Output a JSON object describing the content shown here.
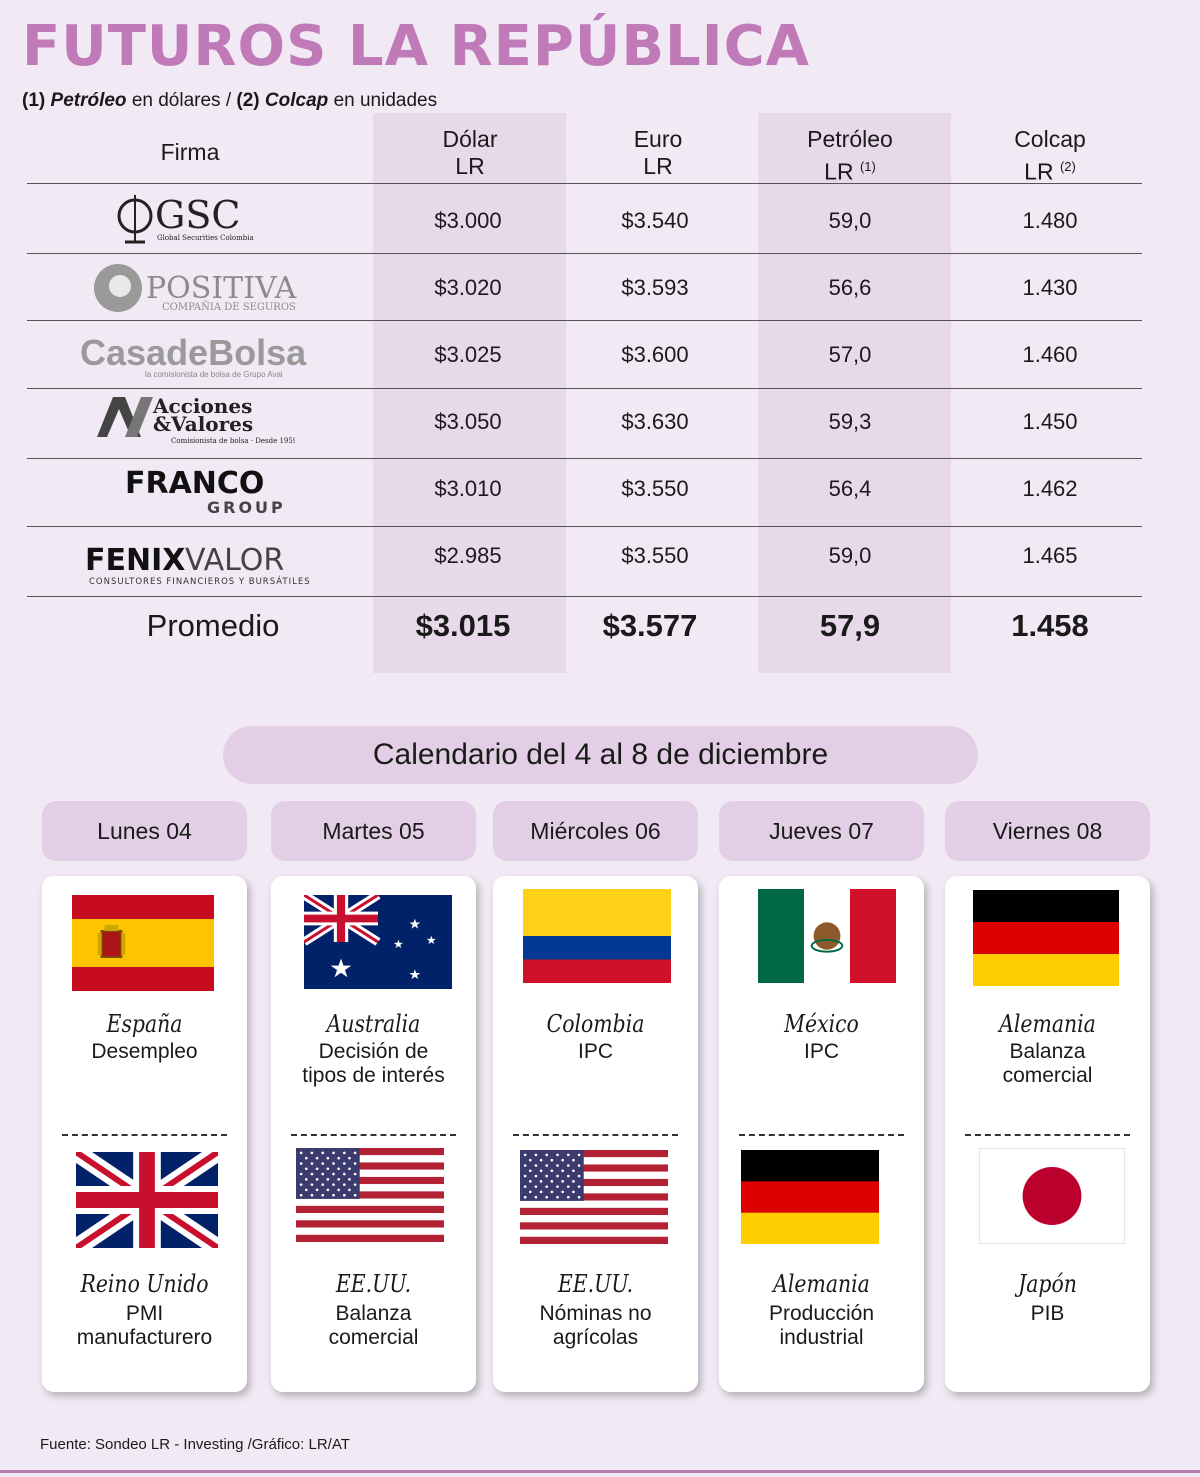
{
  "title": "FUTUROS LA REPÚBLICA",
  "subtitle": {
    "n1": "(1)",
    "t1": "Petróleo",
    "t2": "en dólares /",
    "n2": "(2)",
    "t3": "Colcap",
    "t4": "en unidades"
  },
  "table": {
    "headers": {
      "firma": "Firma",
      "dolar": [
        "Dólar",
        "LR"
      ],
      "euro": [
        "Euro",
        "LR"
      ],
      "petroleo": [
        "Petróleo",
        "LR",
        "(1)"
      ],
      "colcap": [
        "Colcap",
        "LR",
        "(2)"
      ]
    },
    "rows": [
      {
        "firm": "GSC",
        "firm_sub": "Global Securities Colombia",
        "dolar": "$3.000",
        "euro": "$3.540",
        "petroleo": "59,0",
        "colcap": "1.480"
      },
      {
        "firm": "POSITIVA",
        "firm_sub": "COMPAÑIA DE SEGUROS",
        "dolar": "$3.020",
        "euro": "$3.593",
        "petroleo": "56,6",
        "colcap": "1.430"
      },
      {
        "firm": "CasadeBolsa",
        "firm_sub": "la comisionista de bolsa de Grupo Aval",
        "dolar": "$3.025",
        "euro": "$3.600",
        "petroleo": "57,0",
        "colcap": "1.460"
      },
      {
        "firm": "Acciones & Valores",
        "firm_sub": "Comisionista de bolsa · Desde 1959",
        "dolar": "$3.050",
        "euro": "$3.630",
        "petroleo": "59,3",
        "colcap": "1.450"
      },
      {
        "firm": "FRANCO",
        "firm_sub": "GROUP",
        "dolar": "$3.010",
        "euro": "$3.550",
        "petroleo": "56,4",
        "colcap": "1.462"
      },
      {
        "firm": "FENIXVALOR",
        "firm_sub": "CONSULTORES FINANCIEROS Y BURSÁTILES",
        "dolar": "$2.985",
        "euro": "$3.550",
        "petroleo": "59,0",
        "colcap": "1.465"
      }
    ],
    "average": {
      "label": "Promedio",
      "dolar": "$3.015",
      "euro": "$3.577",
      "petroleo": "57,9",
      "colcap": "1.458"
    }
  },
  "calendar": {
    "title": "Calendario del 4 al 8 de diciembre",
    "days": [
      {
        "label": "Lunes 04",
        "events": [
          {
            "country": "España",
            "flag": "spain-flag-icon",
            "event": [
              "Desempleo"
            ]
          },
          {
            "country": "Reino Unido",
            "flag": "uk-flag-icon",
            "event": [
              "PMI",
              "manufacturero"
            ]
          }
        ]
      },
      {
        "label": "Martes 05",
        "events": [
          {
            "country": "Australia",
            "flag": "australia-flag-icon",
            "event": [
              "Decisión de",
              "tipos de interés"
            ]
          },
          {
            "country": "EE.UU.",
            "flag": "usa-flag-icon",
            "event": [
              "Balanza",
              "comercial"
            ]
          }
        ]
      },
      {
        "label": "Miércoles 06",
        "events": [
          {
            "country": "Colombia",
            "flag": "colombia-flag-icon",
            "event": [
              "IPC"
            ]
          },
          {
            "country": "EE.UU.",
            "flag": "usa-flag-icon",
            "event": [
              "Nóminas no",
              "agrícolas"
            ]
          }
        ]
      },
      {
        "label": "Jueves 07",
        "events": [
          {
            "country": "México",
            "flag": "mexico-flag-icon",
            "event": [
              "IPC"
            ]
          },
          {
            "country": "Alemania",
            "flag": "germany-flag-icon",
            "event": [
              "Producción",
              "industrial"
            ]
          }
        ]
      },
      {
        "label": "Viernes 08",
        "events": [
          {
            "country": "Alemania",
            "flag": "germany-flag-icon",
            "event": [
              "Balanza",
              "comercial"
            ]
          },
          {
            "country": "Japón",
            "flag": "japan-flag-icon",
            "event": [
              "PIB"
            ]
          }
        ]
      }
    ]
  },
  "colors": {
    "title": "#c07ab8",
    "band": "#e8d9ea",
    "pill": "#e3cfe5",
    "background": "#f1e9f3"
  },
  "source": "Fuente: Sondeo LR - Investing /Gráfico: LR/AT"
}
